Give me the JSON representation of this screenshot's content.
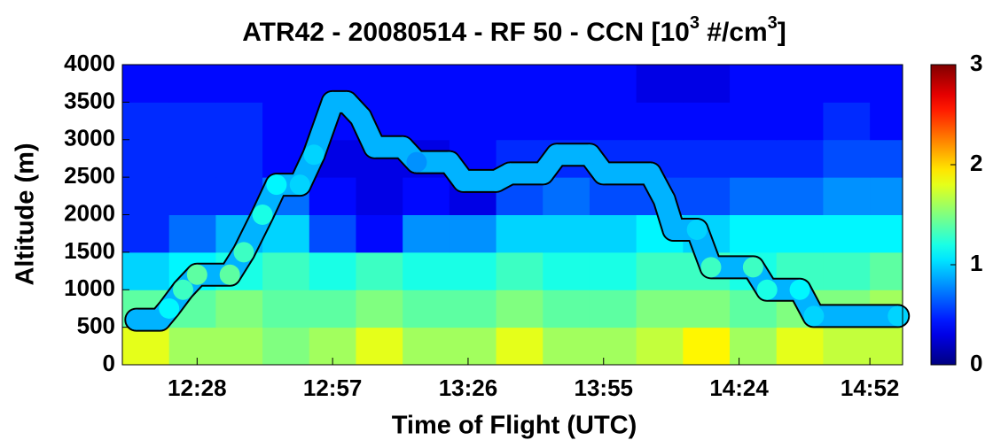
{
  "chart_data": {
    "type": "heatmap",
    "title": [
      "ATR42 - 20080514 - RF 50 - CCN [10",
      "3",
      " #/cm",
      "3",
      "]"
    ],
    "x_label": "Time of Flight (UTC)",
    "y_label": "Altitude (m)",
    "xlim": [
      "12:12",
      "14:59"
    ],
    "xticks": [
      "12:28",
      "12:57",
      "13:26",
      "13:55",
      "14:24",
      "14:52"
    ],
    "ylim": [
      0,
      4000
    ],
    "yticks": [
      0,
      500,
      1000,
      1500,
      2000,
      2500,
      3000,
      3500,
      4000
    ],
    "colormap": "jet",
    "clim": [
      0,
      3
    ],
    "cticks": [
      0,
      1,
      2,
      3
    ],
    "x_edges": [
      "12:12",
      "12:22",
      "12:32",
      "12:42",
      "12:52",
      "13:02",
      "13:12",
      "13:22",
      "13:32",
      "13:42",
      "13:52",
      "14:02",
      "14:12",
      "14:22",
      "14:32",
      "14:42",
      "14:52",
      "14:59"
    ],
    "y_edges": [
      0,
      500,
      1000,
      1500,
      2000,
      2500,
      3000,
      3500,
      4000
    ],
    "z": [
      [
        1.8,
        1.6,
        1.6,
        1.5,
        1.6,
        1.8,
        1.6,
        1.6,
        1.8,
        1.6,
        1.6,
        1.7,
        1.9,
        1.6,
        1.8,
        1.7,
        1.7
      ],
      [
        1.4,
        1.4,
        1.5,
        1.4,
        1.4,
        1.5,
        1.4,
        1.4,
        1.5,
        1.4,
        1.4,
        1.5,
        1.5,
        1.4,
        1.5,
        1.5,
        1.6
      ],
      [
        1.0,
        1.1,
        1.2,
        1.3,
        1.2,
        1.3,
        1.2,
        1.2,
        1.3,
        1.2,
        1.2,
        1.3,
        1.3,
        1.2,
        1.3,
        1.3,
        1.4
      ],
      [
        0.5,
        0.7,
        0.9,
        1.0,
        0.6,
        0.4,
        0.8,
        0.8,
        1.0,
        1.0,
        1.0,
        1.1,
        1.0,
        1.1,
        1.1,
        1.1,
        1.1
      ],
      [
        0.5,
        0.5,
        0.5,
        0.7,
        0.4,
        0.3,
        0.4,
        0.3,
        0.6,
        0.7,
        0.6,
        0.6,
        0.6,
        0.7,
        0.7,
        0.8,
        0.8
      ],
      [
        0.5,
        0.5,
        0.5,
        0.4,
        0.3,
        0.3,
        0.3,
        0.4,
        0.5,
        0.5,
        0.5,
        0.5,
        0.5,
        0.5,
        0.5,
        0.6,
        0.6
      ],
      [
        0.5,
        0.5,
        0.5,
        0.4,
        0.4,
        0.4,
        0.4,
        0.4,
        0.4,
        0.4,
        0.4,
        0.4,
        0.4,
        0.4,
        0.4,
        0.5,
        0.4
      ],
      [
        0.4,
        0.4,
        0.4,
        0.4,
        0.4,
        0.4,
        0.4,
        0.4,
        0.4,
        0.4,
        0.4,
        0.3,
        0.3,
        0.4,
        0.4,
        0.4,
        0.4
      ]
    ],
    "track": {
      "x": [
        "12:15",
        "12:20",
        "12:22",
        "12:25",
        "12:28",
        "12:35",
        "12:38",
        "12:42",
        "12:45",
        "12:50",
        "12:53",
        "12:57",
        "13:00",
        "13:03",
        "13:06",
        "13:12",
        "13:15",
        "13:22",
        "13:25",
        "13:32",
        "13:35",
        "13:42",
        "13:45",
        "13:52",
        "13:55",
        "14:05",
        "14:08",
        "14:10",
        "14:15",
        "14:18",
        "14:27",
        "14:30",
        "14:37",
        "14:40",
        "14:58"
      ],
      "altitude": [
        600,
        600,
        750,
        1000,
        1200,
        1200,
        1500,
        2000,
        2400,
        2400,
        2800,
        3500,
        3500,
        3300,
        2900,
        2900,
        2700,
        2700,
        2450,
        2450,
        2550,
        2550,
        2800,
        2800,
        2550,
        2550,
        2200,
        1800,
        1800,
        1300,
        1300,
        1000,
        1000,
        650,
        650
      ],
      "ccn": [
        0.9,
        0.9,
        1.1,
        1.3,
        1.4,
        1.4,
        1.3,
        1.2,
        1.1,
        1.0,
        1.0,
        0.9,
        0.9,
        0.9,
        0.9,
        0.9,
        0.8,
        0.9,
        0.9,
        0.9,
        0.9,
        0.9,
        0.9,
        0.9,
        0.9,
        0.9,
        0.9,
        0.9,
        1.0,
        1.3,
        1.3,
        1.2,
        1.1,
        1.0,
        1.0
      ]
    }
  }
}
